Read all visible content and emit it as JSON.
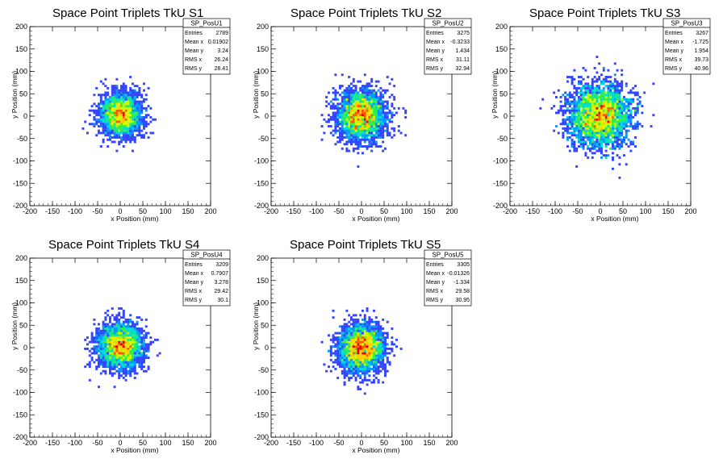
{
  "chart_data": [
    {
      "type": "heatmap",
      "title": "Space Point Triplets TkU S1",
      "xlabel": "x Position (mm)",
      "ylabel": "y Position (mm)",
      "xlim": [
        -200,
        200
      ],
      "ylim": [
        -200,
        200
      ],
      "xticks": [
        -200,
        -150,
        -100,
        -50,
        0,
        50,
        100,
        150,
        200
      ],
      "yticks": [
        -200,
        -150,
        -100,
        -50,
        0,
        50,
        100,
        150,
        200
      ],
      "stats": {
        "name": "SP_PosU1",
        "rows": [
          {
            "label": "Entries",
            "value": "2789"
          },
          {
            "label": "Mean x",
            "value": "0.01902"
          },
          {
            "label": "Mean y",
            "value": "3.24"
          },
          {
            "label": "RMS x",
            "value": "26.24"
          },
          {
            "label": "RMS y",
            "value": "28.41"
          }
        ]
      },
      "distribution": {
        "entries": 2789,
        "mean_x": 0.01902,
        "mean_y": 3.24,
        "rms_x": 26.24,
        "rms_y": 28.41
      }
    },
    {
      "type": "heatmap",
      "title": "Space Point Triplets TkU S2",
      "xlabel": "x Position (mm)",
      "ylabel": "y Position (mm)",
      "xlim": [
        -200,
        200
      ],
      "ylim": [
        -200,
        200
      ],
      "xticks": [
        -200,
        -150,
        -100,
        -50,
        0,
        50,
        100,
        150,
        200
      ],
      "yticks": [
        -200,
        -150,
        -100,
        -50,
        0,
        50,
        100,
        150,
        200
      ],
      "stats": {
        "name": "SP_PosU2",
        "rows": [
          {
            "label": "Entries",
            "value": "3275"
          },
          {
            "label": "Mean x",
            "value": "-0.3233"
          },
          {
            "label": "Mean y",
            "value": "1.434"
          },
          {
            "label": "RMS x",
            "value": "31.11"
          },
          {
            "label": "RMS y",
            "value": "32.94"
          }
        ]
      },
      "distribution": {
        "entries": 3275,
        "mean_x": -0.3233,
        "mean_y": 1.434,
        "rms_x": 31.11,
        "rms_y": 32.94
      }
    },
    {
      "type": "heatmap",
      "title": "Space Point Triplets TkU S3",
      "xlabel": "x Position (mm)",
      "ylabel": "y Position (mm)",
      "xlim": [
        -200,
        200
      ],
      "ylim": [
        -200,
        200
      ],
      "xticks": [
        -200,
        -150,
        -100,
        -50,
        0,
        50,
        100,
        150,
        200
      ],
      "yticks": [
        -200,
        -150,
        -100,
        -50,
        0,
        50,
        100,
        150,
        200
      ],
      "stats": {
        "name": "SP_PosU3",
        "rows": [
          {
            "label": "Entries",
            "value": "3267"
          },
          {
            "label": "Mean x",
            "value": "-1.725"
          },
          {
            "label": "Mean y",
            "value": "1.954"
          },
          {
            "label": "RMS x",
            "value": "39.73"
          },
          {
            "label": "RMS y",
            "value": "40.96"
          }
        ]
      },
      "distribution": {
        "entries": 3267,
        "mean_x": -1.725,
        "mean_y": 1.954,
        "rms_x": 39.73,
        "rms_y": 40.96
      }
    },
    {
      "type": "heatmap",
      "title": "Space Point Triplets TkU S4",
      "xlabel": "x Position (mm)",
      "ylabel": "y Position (mm)",
      "xlim": [
        -200,
        200
      ],
      "ylim": [
        -200,
        200
      ],
      "xticks": [
        -200,
        -150,
        -100,
        -50,
        0,
        50,
        100,
        150,
        200
      ],
      "yticks": [
        -200,
        -150,
        -100,
        -50,
        0,
        50,
        100,
        150,
        200
      ],
      "stats": {
        "name": "SP_PosU4",
        "rows": [
          {
            "label": "Entries",
            "value": "3209"
          },
          {
            "label": "Mean x",
            "value": "0.7907"
          },
          {
            "label": "Mean y",
            "value": "3.278"
          },
          {
            "label": "RMS x",
            "value": "29.42"
          },
          {
            "label": "RMS y",
            "value": "30.1"
          }
        ]
      },
      "distribution": {
        "entries": 3209,
        "mean_x": 0.7907,
        "mean_y": 3.278,
        "rms_x": 29.42,
        "rms_y": 30.1
      }
    },
    {
      "type": "heatmap",
      "title": "Space Point Triplets TkU S5",
      "xlabel": "x Position (mm)",
      "ylabel": "y Position (mm)",
      "xlim": [
        -200,
        200
      ],
      "ylim": [
        -200,
        200
      ],
      "xticks": [
        -200,
        -150,
        -100,
        -50,
        0,
        50,
        100,
        150,
        200
      ],
      "yticks": [
        -200,
        -150,
        -100,
        -50,
        0,
        50,
        100,
        150,
        200
      ],
      "stats": {
        "name": "SP_PosU5",
        "rows": [
          {
            "label": "Entries",
            "value": "3305"
          },
          {
            "label": "Mean x",
            "value": "-0.01326"
          },
          {
            "label": "Mean y",
            "value": "-1.334"
          },
          {
            "label": "RMS x",
            "value": "29.58"
          },
          {
            "label": "RMS y",
            "value": "30.95"
          }
        ]
      },
      "distribution": {
        "entries": 3305,
        "mean_x": -0.01326,
        "mean_y": -1.334,
        "rms_x": 29.58,
        "rms_y": 30.95
      }
    }
  ],
  "colors": {
    "palette": [
      "#6600ff",
      "#3344ff",
      "#0099ff",
      "#00ddcc",
      "#33ee44",
      "#ccff00",
      "#ffcc00",
      "#ff5500",
      "#ee0000"
    ],
    "frame": "#000000",
    "background": "#ffffff"
  }
}
